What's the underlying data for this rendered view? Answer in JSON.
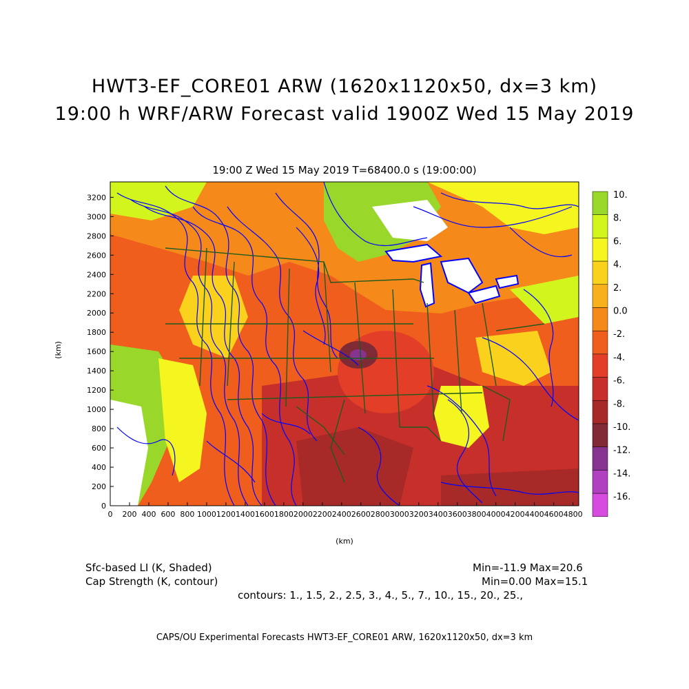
{
  "header": {
    "title_line1": "HWT3-EF_CORE01 ARW (1620x1120x50, dx=3 km)",
    "title_line2": "19:00 h WRF/ARW Forecast valid 1900Z Wed 15 May 2019",
    "subtitle": "19:00 Z Wed 15 May 2019    T=68400.0 s (19:00:00)"
  },
  "map": {
    "x_axis": {
      "label": "(km)",
      "ticks": [
        0,
        200,
        400,
        600,
        800,
        1000,
        1200,
        1400,
        1600,
        1800,
        2000,
        2200,
        2400,
        2600,
        2800,
        3000,
        3200,
        3400,
        3600,
        3800,
        4000,
        4200,
        4400,
        4600,
        4800
      ],
      "range": [
        0,
        4860
      ]
    },
    "y_axis": {
      "label": "(km)",
      "ticks": [
        0,
        200,
        400,
        600,
        800,
        1000,
        1200,
        1400,
        1600,
        1800,
        2000,
        2200,
        2400,
        2600,
        2800,
        3000,
        3200
      ],
      "range": [
        0,
        3360
      ]
    },
    "contour_color": "#0000ff",
    "border_color": "#1e5a1e"
  },
  "colorbar": {
    "labels": [
      "10.",
      "8.",
      "6.",
      "4.",
      "2.",
      "0.0",
      "-2.",
      "-4.",
      "-6.",
      "-8.",
      "-10.",
      "-12.",
      "-14.",
      "-16."
    ],
    "colors": [
      "#99d82a",
      "#d2f51e",
      "#f5f520",
      "#fad21e",
      "#f8b01c",
      "#f58a1a",
      "#f05e1e",
      "#e33f28",
      "#c72f2a",
      "#a82a28",
      "#7f2a35",
      "#86348f",
      "#b040c0",
      "#d64be0"
    ]
  },
  "info": {
    "field_shaded": "Sfc-based LI (K, Shaded)",
    "field_contour": "Cap Strength (K, contour)",
    "stats_shaded": "Min=-11.9 Max=20.6",
    "stats_contour": "Min=0.00 Max=15.1",
    "contours": "contours: 1., 1.5, 2., 2.5, 3., 4., 5., 7., 10., 15., 20., 25.,"
  },
  "footer": "CAPS/OU Experimental Forecasts  HWT3-EF_CORE01 ARW, 1620x1120x50, dx=3 km"
}
